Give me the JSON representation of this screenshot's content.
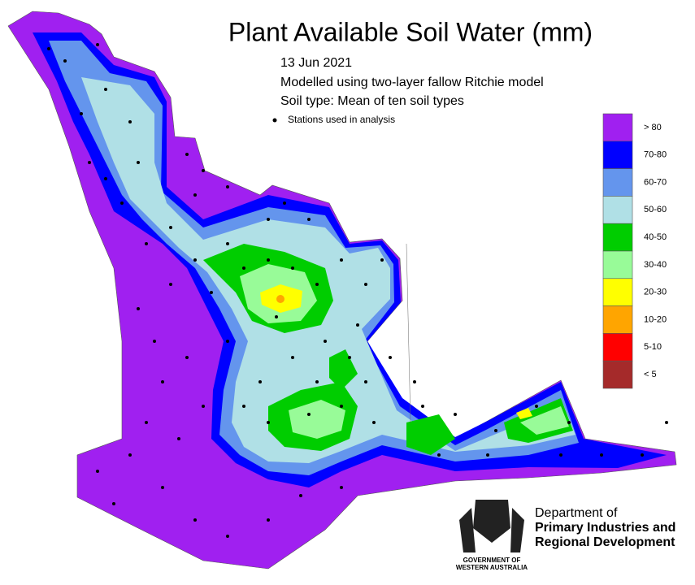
{
  "title": "Plant Available Soil Water (mm)",
  "subtitle_lines": [
    "13 Jun 2021",
    "Modelled using two-layer fallow Ritchie model",
    "Soil type: Mean of ten soil types"
  ],
  "stations_label": "Stations used in analysis",
  "legend": [
    {
      "label": "> 80",
      "color": "#a020f0"
    },
    {
      "label": "70-80",
      "color": "#0000ff"
    },
    {
      "label": "60-70",
      "color": "#6495ed"
    },
    {
      "label": "50-60",
      "color": "#b0e0e6"
    },
    {
      "label": "40-50",
      "color": "#00cd00"
    },
    {
      "label": "30-40",
      "color": "#98fb98"
    },
    {
      "label": "20-30",
      "color": "#ffff00"
    },
    {
      "label": "10-20",
      "color": "#ffa500"
    },
    {
      "label": "5-10",
      "color": "#ff0000"
    },
    {
      "label": "< 5",
      "color": "#a52a2a"
    }
  ],
  "logo": {
    "department_lines": [
      "Department of",
      "Primary Industries and",
      "Regional Development"
    ],
    "government_lines": [
      "GOVERNMENT OF",
      "WESTERN AUSTRALIA"
    ]
  }
}
